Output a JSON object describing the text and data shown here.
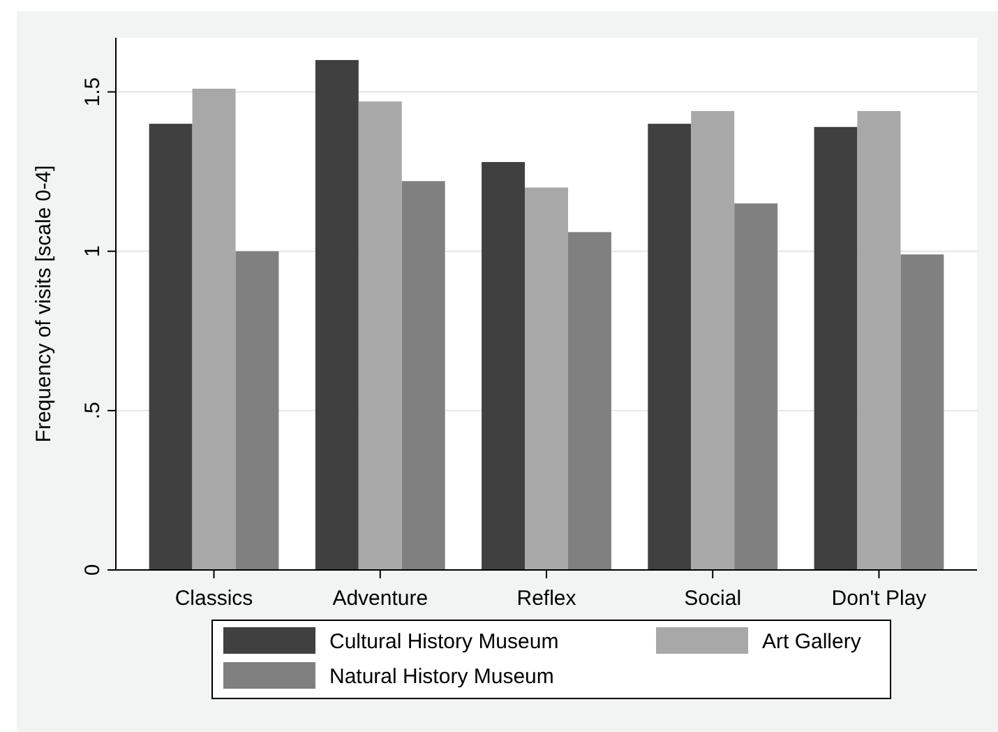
{
  "chart_data": {
    "type": "bar",
    "ylabel": "Frequency of visits [scale 0-4]",
    "categories": [
      "Classics",
      "Adventure",
      "Reflex",
      "Social",
      "Don't Play"
    ],
    "series": [
      {
        "name": "Cultural History Museum",
        "color": "#404040",
        "values": [
          1.4,
          1.6,
          1.28,
          1.4,
          1.39
        ]
      },
      {
        "name": "Art Gallery",
        "color": "#a8a8a8",
        "values": [
          1.51,
          1.47,
          1.2,
          1.44,
          1.44
        ]
      },
      {
        "name": "Natural History Museum",
        "color": "#808080",
        "values": [
          1.0,
          1.22,
          1.06,
          1.15,
          0.99
        ]
      }
    ],
    "ylim": [
      0,
      1.67
    ],
    "yticks": [
      0,
      {
        "value": 0.5,
        "label": ".5"
      },
      1,
      1.5
    ],
    "grid": "y",
    "legend": "bottom"
  }
}
